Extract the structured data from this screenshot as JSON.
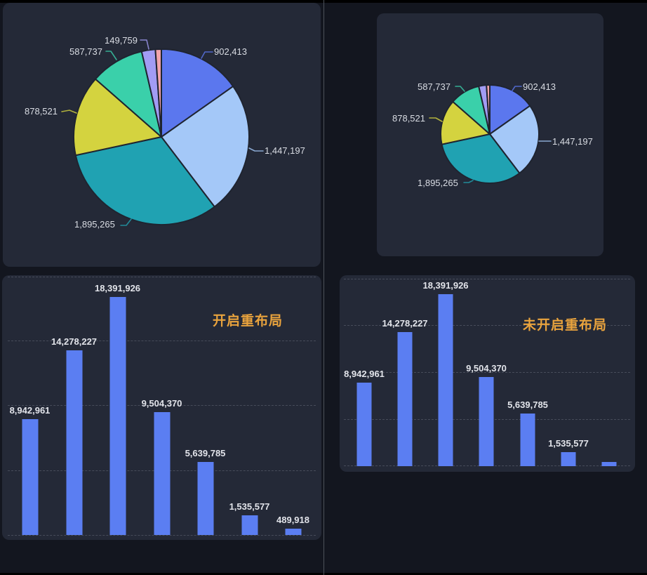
{
  "ui": {
    "page_background": "#13161f",
    "card_background": "#242937",
    "divider_color": "#4d525a",
    "gridline_color": "#474c5a",
    "pie_label_color": "#d9dce3",
    "bar_label_color": "#e2e4ea",
    "title_color": "#e9a33d",
    "bar_color": "#5b7ef2"
  },
  "chart_data": [
    {
      "id": "pie-large",
      "type": "pie",
      "legend": "none",
      "label_style": "outside with leader lines",
      "slices": [
        {
          "label": "902,413",
          "value": 902413,
          "color": "#5b77ee",
          "label_visible": true
        },
        {
          "label": "1,447,197",
          "value": 1447197,
          "color": "#a4c8f8",
          "label_visible": true
        },
        {
          "label": "1,895,265",
          "value": 1895265,
          "color": "#20a2b2",
          "label_visible": true
        },
        {
          "label": "878,521",
          "value": 878521,
          "color": "#d4d33f",
          "label_visible": true
        },
        {
          "label": "587,737",
          "value": 587737,
          "color": "#3ad0aa",
          "label_visible": true
        },
        {
          "label": "149,759",
          "value": 149759,
          "color": "#a29cf4",
          "label_visible": true
        },
        {
          "label": "",
          "value": 65000,
          "color": "#f2a4ab",
          "label_visible": false,
          "value_estimated_from_arc": true
        }
      ]
    },
    {
      "id": "pie-small",
      "type": "pie",
      "legend": "none",
      "label_style": "outside with leader lines, overlapping labels hidden",
      "hidden_labels": [
        "149,759"
      ],
      "slices": [
        {
          "label": "902,413",
          "value": 902413,
          "color": "#5b77ee",
          "label_visible": true
        },
        {
          "label": "1,447,197",
          "value": 1447197,
          "color": "#a4c8f8",
          "label_visible": true
        },
        {
          "label": "1,895,265",
          "value": 1895265,
          "color": "#20a2b2",
          "label_visible": true
        },
        {
          "label": "878,521",
          "value": 878521,
          "color": "#d4d33f",
          "label_visible": true
        },
        {
          "label": "587,737",
          "value": 587737,
          "color": "#3ad0aa",
          "label_visible": true
        },
        {
          "label": "149,759",
          "value": 149759,
          "color": "#a29cf4",
          "label_visible": false
        },
        {
          "label": "",
          "value": 65000,
          "color": "#f2a4ab",
          "label_visible": false,
          "value_estimated_from_arc": true
        }
      ]
    },
    {
      "id": "bar-relayout-on",
      "type": "bar",
      "title": "开启重布局",
      "values": [
        8942961,
        14278227,
        18391926,
        9504370,
        5639785,
        1535577,
        489918
      ],
      "value_labels": [
        "8,942,961",
        "14,278,227",
        "18,391,926",
        "9,504,370",
        "5,639,785",
        "1,535,577",
        "489,918"
      ],
      "ylim": [
        0,
        20000000
      ],
      "gridlines": "horizontal dashed every 5,000,000",
      "axis_tick_labels": "none",
      "legend_position": "none"
    },
    {
      "id": "bar-relayout-off",
      "type": "bar",
      "title": "未开启重布局",
      "values": [
        8942961,
        14278227,
        18391926,
        9504370,
        5639785,
        1535577,
        489918
      ],
      "value_labels": [
        "8,942,961",
        "14,278,227",
        "18,391,926",
        "9,504,370",
        "5,639,785",
        "1,535,577"
      ],
      "hidden_value_labels": [
        "489,918"
      ],
      "ylim": [
        0,
        20000000
      ],
      "gridlines": "horizontal dashed every 5,000,000",
      "axis_tick_labels": "none",
      "legend_position": "none"
    }
  ]
}
